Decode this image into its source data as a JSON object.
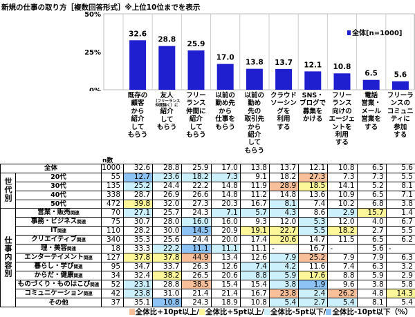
{
  "title": "新規の仕事の取り方［複数回答形式］※上位10位までを表示",
  "chart_data": {
    "type": "bar",
    "title": "新規の仕事の取り方［複数回答形式］※上位10位までを表示",
    "ylim": [
      0,
      50
    ],
    "yticks": [
      "0%",
      "25%",
      "50%"
    ],
    "grid": true,
    "legend_position": "top-right",
    "series": [
      {
        "name": "全体[n=1000]",
        "color": "#1f1fd0",
        "values": [
          32.6,
          28.8,
          25.9,
          17.0,
          13.8,
          13.7,
          12.1,
          10.8,
          6.5,
          5.6
        ]
      }
    ],
    "categories": [
      [
        "既存の",
        "顧客",
        "から",
        "紹介",
        "して",
        "もらう"
      ],
      [
        "友人",
        "（フリーランス",
        "仲間除く）に",
        "紹介",
        "して",
        "もらう"
      ],
      [
        "フリー",
        "ランス",
        "仲間に",
        "紹介",
        "して",
        "もらう"
      ],
      [
        "以前の",
        "勤め先",
        "から",
        "仕事を",
        "もらう"
      ],
      [
        "以前の",
        "勤め",
        "先の",
        "取引先",
        "から",
        "紹介",
        "して",
        "もらう"
      ],
      [
        "クラウド",
        "ソーシン",
        "グを",
        "利用",
        "する"
      ],
      [
        "SNS・",
        "ブログで",
        "募集を",
        "かける"
      ],
      [
        "フリー",
        "ランス",
        "向けの",
        "エージェ",
        "ントを",
        "利用",
        "する"
      ],
      [
        "電話",
        "営業・",
        "メール",
        "営業を",
        "する"
      ],
      [
        "フリーラ",
        "ンスの",
        "コミュニ",
        "ティに",
        "参加",
        "する"
      ]
    ]
  },
  "table": {
    "n_label": "n数",
    "total": {
      "label": "全体",
      "n": "1000",
      "values": [
        "32.6",
        "28.8",
        "25.9",
        "17.0",
        "13.8",
        "13.7",
        "12.1",
        "10.8",
        "6.5",
        "5.6"
      ],
      "colors": [
        "",
        "",
        "",
        "",
        "",
        "",
        "",
        "",
        "",
        ""
      ]
    },
    "groups": [
      {
        "label": "世代別",
        "rows": [
          {
            "label": "20代",
            "suffix": "",
            "n": "55",
            "values": [
              "12.7",
              "23.6",
              "18.2",
              "7.3",
              "9.1",
              "18.2",
              "27.3",
              "7.3",
              "7.3",
              "5.5"
            ],
            "colors": [
              "B",
              "L",
              "L",
              "L",
              "",
              "",
              "O",
              "",
              "",
              ""
            ]
          },
          {
            "label": "30代",
            "suffix": "",
            "n": "135",
            "values": [
              "25.2",
              "24.4",
              "22.2",
              "14.8",
              "11.9",
              "28.9",
              "18.5",
              "14.1",
              "5.2",
              "8.1"
            ],
            "colors": [
              "L",
              "",
              "",
              "",
              "",
              "O",
              "Y",
              "",
              "",
              ""
            ]
          },
          {
            "label": "40代",
            "suffix": "",
            "n": "338",
            "values": [
              "28.7",
              "26.9",
              "26.6",
              "14.8",
              "11.2",
              "14.8",
              "13.6",
              "10.9",
              "6.5",
              "7.1"
            ],
            "colors": [
              "",
              "",
              "",
              "",
              "",
              "",
              "",
              "",
              "",
              ""
            ]
          },
          {
            "label": "50代",
            "suffix": "",
            "n": "472",
            "values": [
              "39.8",
              "32.0",
              "27.3",
              "20.3",
              "16.7",
              "8.1",
              "7.4",
              "10.2",
              "6.8",
              "3.8"
            ],
            "colors": [
              "Y",
              "",
              "",
              "",
              "",
              "L",
              "",
              "",
              "",
              ""
            ]
          }
        ]
      },
      {
        "label": "仕事内容別",
        "rows": [
          {
            "label": "営業・販売",
            "suffix": "関連",
            "n": "70",
            "values": [
              "27.1",
              "25.7",
              "24.3",
              "7.1",
              "5.7",
              "4.3",
              "8.6",
              "2.9",
              "15.7",
              "1.4"
            ],
            "colors": [
              "L",
              "",
              "",
              "L",
              "L",
              "L",
              "",
              "L",
              "Y",
              ""
            ]
          },
          {
            "label": "事務・ビジネス",
            "suffix": "関連",
            "n": "75",
            "values": [
              "30.7",
              "28.0",
              "16.0",
              "16.0",
              "9.3",
              "12.0",
              "5.3",
              "12.0",
              "4.0",
              "6.7"
            ],
            "colors": [
              "",
              "",
              "L",
              "",
              "",
              "",
              "L",
              "",
              "",
              ""
            ]
          },
          {
            "label": "IT",
            "suffix": "関連",
            "n": "110",
            "values": [
              "28.2",
              "30.0",
              "14.5",
              "20.9",
              "19.1",
              "22.7",
              "5.5",
              "18.2",
              "2.7",
              "5.5"
            ],
            "colors": [
              "",
              "",
              "B",
              "",
              "Y",
              "Y",
              "L",
              "Y",
              "",
              ""
            ]
          },
          {
            "label": "クリエイティブ",
            "suffix": "関連",
            "n": "340",
            "values": [
              "35.3",
              "25.6",
              "24.4",
              "20.0",
              "17.4",
              "20.6",
              "14.7",
              "11.5",
              "6.5",
              "6.2"
            ],
            "colors": [
              "",
              "",
              "",
              "",
              "",
              "Y",
              "",
              "",
              "",
              ""
            ]
          },
          {
            "label": "理・美容",
            "suffix": "関連",
            "n": "18",
            "values": [
              "33.3",
              "22.2",
              "11.1",
              "11.1",
              "11.1",
              "-",
              "16.7",
              "-",
              "5.6",
              "-"
            ],
            "colors": [
              "",
              "L",
              "B",
              "L",
              "",
              "",
              "",
              "",
              "",
              ""
            ]
          },
          {
            "label": "エンターテイメント",
            "suffix": "関連",
            "n": "127",
            "values": [
              "37.8",
              "37.8",
              "44.9",
              "13.4",
              "12.6",
              "7.9",
              "25.2",
              "7.9",
              "7.9",
              "6.3"
            ],
            "colors": [
              "Y",
              "Y",
              "O",
              "",
              "",
              "L",
              "O",
              "",
              "",
              ""
            ]
          },
          {
            "label": "暮らし・学び",
            "suffix": "関連",
            "n": "95",
            "values": [
              "34.7",
              "33.7",
              "26.3",
              "12.6",
              "7.4",
              "4.2",
              "11.6",
              "7.4",
              "6.3",
              "3.2"
            ],
            "colors": [
              "",
              "",
              "",
              "",
              "L",
              "L",
              "",
              "",
              "",
              ""
            ]
          },
          {
            "label": "からだ・健康",
            "suffix": "関連",
            "n": "34",
            "values": [
              "32.4",
              "38.2",
              "26.5",
              "20.6",
              "8.8",
              "5.9",
              "17.6",
              "8.8",
              "5.9",
              "2.9"
            ],
            "colors": [
              "",
              "Y",
              "",
              "",
              "L",
              "L",
              "Y",
              "",
              "",
              ""
            ]
          },
          {
            "label": "ものづくり・ものはこび",
            "suffix": "関連",
            "n": "52",
            "values": [
              "23.1",
              "28.8",
              "38.5",
              "15.4",
              "15.4",
              "3.8",
              "1.9",
              "9.6",
              "3.8",
              "5.8"
            ],
            "colors": [
              "L",
              "",
              "O",
              "",
              "",
              "L",
              "B",
              "",
              "",
              ""
            ]
          },
          {
            "label": "コミュニケーション",
            "suffix": "関連",
            "n": "42",
            "values": [
              "23.8",
              "31.0",
              "21.4",
              "21.4",
              "16.7",
              "23.8",
              "2.4",
              "26.2",
              "4.8",
              "14.3"
            ],
            "colors": [
              "L",
              "",
              "",
              "",
              "",
              "O",
              "L",
              "O",
              "",
              "Y"
            ]
          },
          {
            "label": "その他",
            "suffix": "",
            "n": "37",
            "values": [
              "35.1",
              "10.8",
              "24.3",
              "18.9",
              "10.8",
              "5.4",
              "2.7",
              "5.4",
              "8.1",
              "5.4"
            ],
            "colors": [
              "",
              "B",
              "",
              "",
              "",
              "L",
              "L",
              "L",
              "",
              ""
            ]
          }
        ]
      }
    ]
  },
  "legend": {
    "items": [
      {
        "code": "O",
        "label": "全体比+10pt以上/",
        "color": "#f8c09a"
      },
      {
        "code": "Y",
        "label": "全体比+5pt以上/",
        "color": "#fdf79a"
      },
      {
        "code": "L",
        "label": "全体比-5pt以下/",
        "color": "#cdf1fc"
      },
      {
        "code": "B",
        "label": "全体比-10pt以下",
        "color": "#8dc3f5"
      }
    ],
    "unit": "（%）"
  }
}
